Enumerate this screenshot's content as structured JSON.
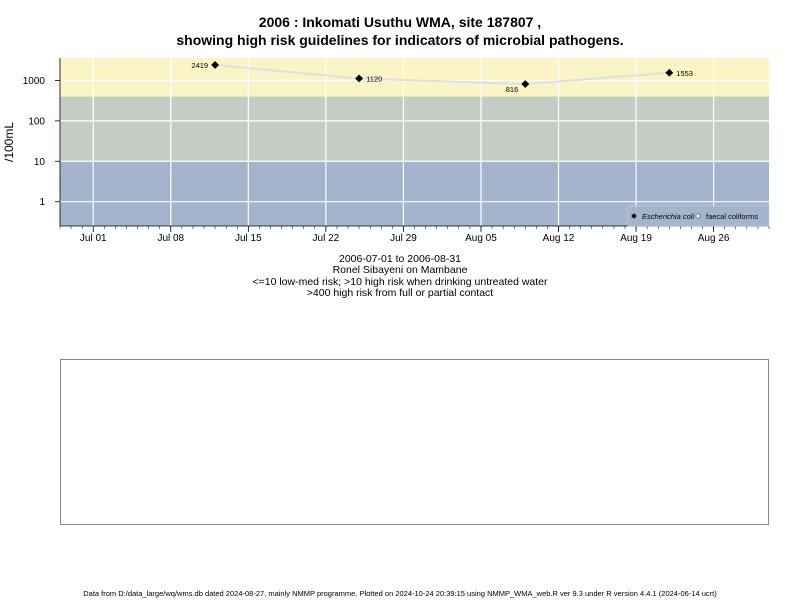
{
  "title_line1": "2006 : Inkomati Usuthu WMA, site 187807 ,",
  "title_line2": "showing high risk guidelines for indicators of microbial pathogens.",
  "subtitle_lines": [
    "2006-07-01 to 2006-08-31",
    "Ronel Sibayeni on Mambane",
    "<=10 low-med risk; >10 high risk when drinking untreated water",
    ">400 high risk from full or partial contact"
  ],
  "footer": "Data from D:/data_large/wq/wms.db dated 2024-08-27, mainly NMMP programme. Plotted on 2024-10-24 20:39:15 using NMMP_WMA_web.R ver 9.3 under R version 4.4.1 (2024-06-14 ucrt)",
  "chart_data": {
    "type": "scatter",
    "ylabel": "/100mL",
    "y_scale": "log",
    "y_ticks": [
      1,
      10,
      100,
      1000
    ],
    "y_tick_labels": [
      "1",
      "10",
      "100",
      "1000"
    ],
    "x_tick_labels": [
      "Jul 01",
      "Jul 08",
      "Jul 15",
      "Jul 22",
      "Jul 29",
      "Aug 05",
      "Aug 12",
      "Aug 19",
      "Aug 26"
    ],
    "x_tick_dates": [
      "2006-07-01",
      "2006-07-08",
      "2006-07-15",
      "2006-07-22",
      "2006-07-29",
      "2006-08-05",
      "2006-08-12",
      "2006-08-19",
      "2006-08-26"
    ],
    "xlim": [
      "2006-06-28",
      "2006-08-31"
    ],
    "ylim": [
      0.25,
      3600
    ],
    "risk_bands": [
      {
        "from": 0.25,
        "to": 10,
        "color": "#a3b4cc"
      },
      {
        "from": 10,
        "to": 400,
        "color": "#c4ccc4"
      },
      {
        "from": 400,
        "to": 3600,
        "color": "#fbf4c6"
      }
    ],
    "series": [
      {
        "name": "Escherichia coli",
        "marker": "filled-diamond",
        "color": "#000000",
        "points": [
          {
            "x": "2006-07-12",
            "y": 2419,
            "label": "2419"
          },
          {
            "x": "2006-07-25",
            "y": 1120,
            "label": "1120"
          },
          {
            "x": "2006-08-09",
            "y": 816,
            "label": "816"
          },
          {
            "x": "2006-08-22",
            "y": 1553,
            "label": "1553"
          }
        ]
      },
      {
        "name": "faecal coliforms",
        "marker": "open-diamond",
        "color": "#000000",
        "points": []
      }
    ],
    "grid": true,
    "legend_position": "bottom-right"
  }
}
